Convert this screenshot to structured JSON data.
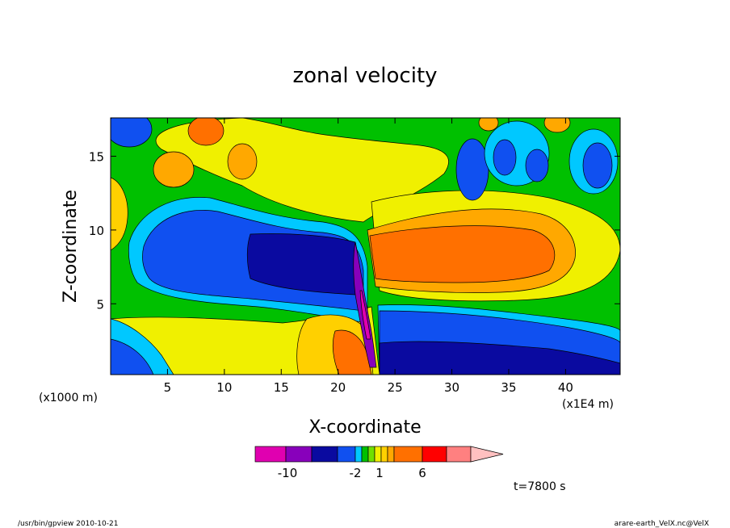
{
  "chart_data": {
    "type": "heatmap",
    "title": "zonal velocity",
    "xlabel": "X-coordinate",
    "ylabel": "Z-coordinate",
    "x_unit": "(x1E4 m)",
    "y_unit": "(x1000 m)",
    "xlim": [
      0,
      44.8
    ],
    "ylim": [
      0.2,
      17.6
    ],
    "x_ticks": [
      "5",
      "10",
      "15",
      "20",
      "25",
      "30",
      "35",
      "40"
    ],
    "y_ticks": [
      "5",
      "10",
      "15"
    ],
    "x_tick_values": [
      5,
      10,
      15,
      20,
      25,
      30,
      35,
      40
    ],
    "y_tick_values": [
      5,
      10,
      15
    ],
    "time_label": "t=7800 s",
    "colorbar": {
      "colors": [
        "#e000b0",
        "#8800bb",
        "#0a0aa0",
        "#1050f0",
        "#00c8ff",
        "#00c000",
        "#70e000",
        "#f0f000",
        "#ffd000",
        "#ffa800",
        "#ff7000",
        "#ff0000",
        "#ff8080",
        "#ffc0c0"
      ],
      "tick_labels": [
        "-10",
        "-2",
        "1",
        "6"
      ],
      "tick_values": [
        -10,
        -2,
        1,
        6
      ],
      "extend": "max"
    },
    "features": [
      {
        "kind": "negative-jet",
        "x_range": [
          3,
          22
        ],
        "z_range": [
          6,
          10
        ],
        "min_value": -10
      },
      {
        "kind": "positive-jet",
        "x_range": [
          23,
          40
        ],
        "z_range": [
          6,
          10
        ],
        "max_value": 6
      },
      {
        "kind": "negative-near-surface",
        "x_range": [
          24,
          44.8
        ],
        "z_range": [
          0.2,
          5
        ]
      },
      {
        "kind": "positive-near-surface",
        "x_range": [
          13,
          23
        ],
        "z_range": [
          0.2,
          4
        ]
      },
      {
        "kind": "shear-line",
        "x_range": [
          21.5,
          24
        ],
        "z_range": [
          0.2,
          10
        ]
      }
    ]
  },
  "footer": {
    "left": "/usr/bin/gpview   2010-10-21",
    "right": "arare-earth_VelX.nc@VelX"
  }
}
